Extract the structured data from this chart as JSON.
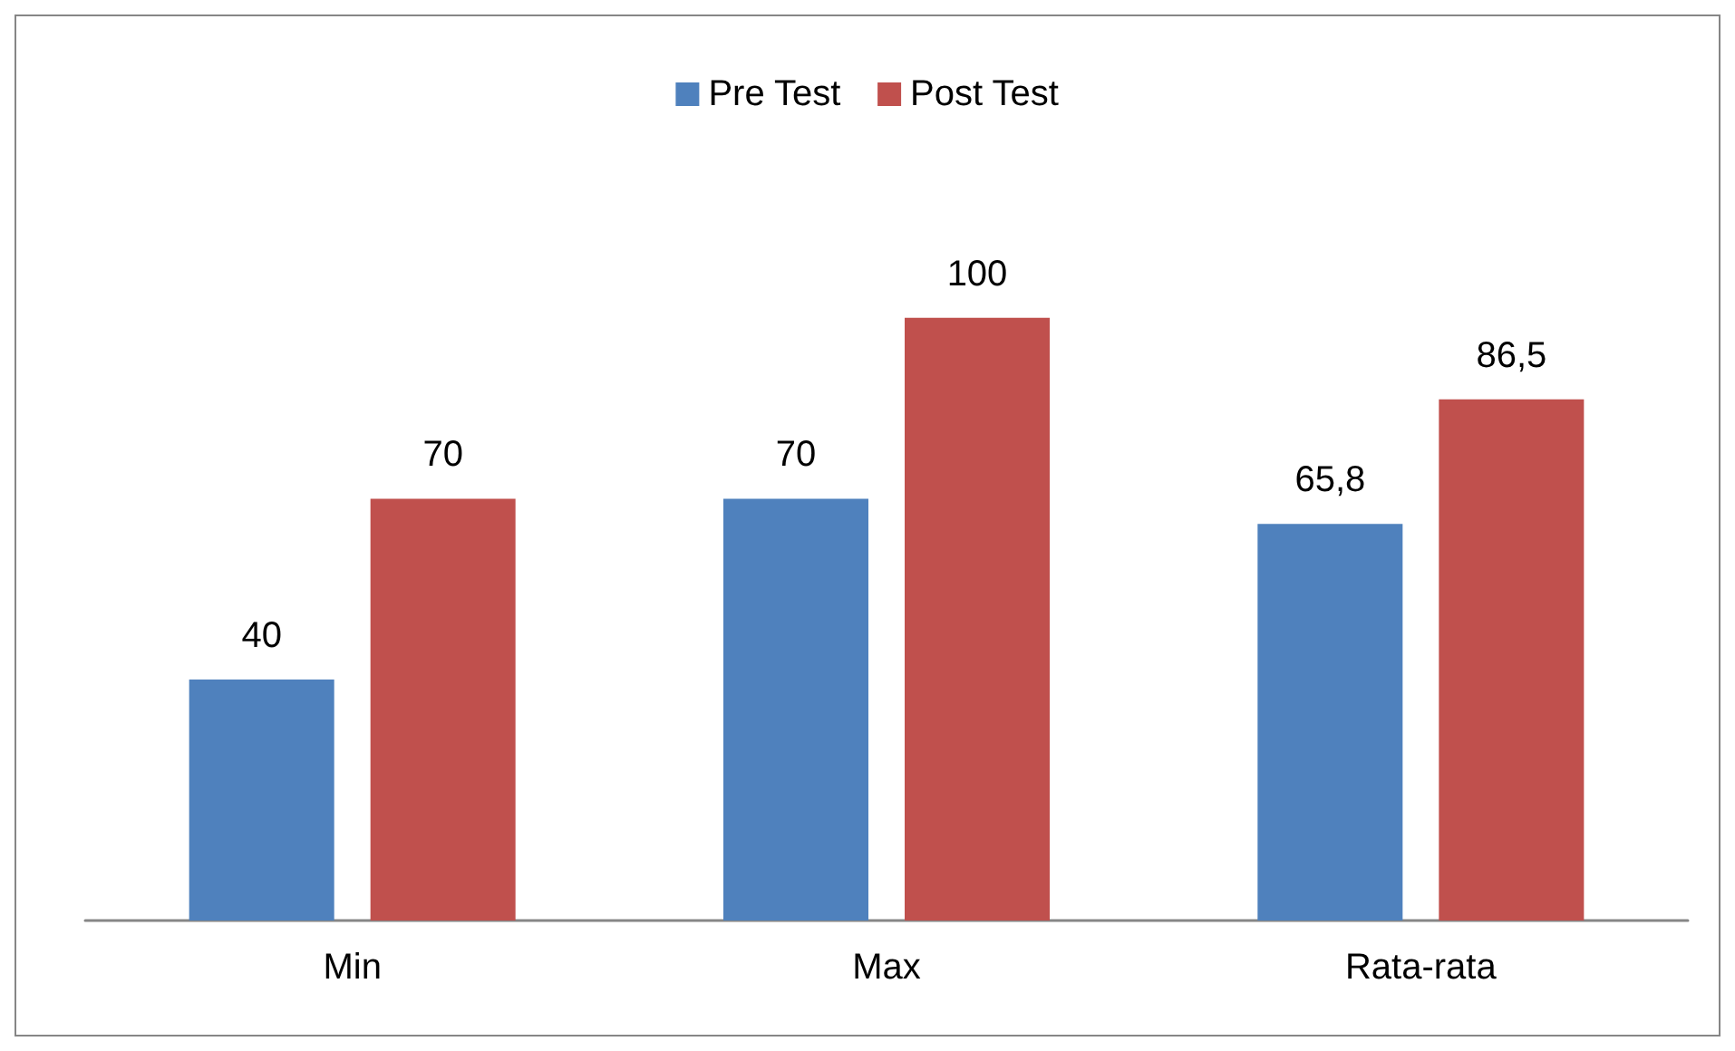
{
  "chart_data": {
    "type": "bar",
    "categories": [
      "Min",
      "Max",
      "Rata-rata"
    ],
    "series": [
      {
        "name": "Pre Test",
        "color": "#4f81bd",
        "values": [
          40,
          70,
          65.8
        ],
        "value_labels": [
          "40",
          "70",
          "65,8"
        ]
      },
      {
        "name": "Post Test",
        "color": "#c0504d",
        "values": [
          70,
          100,
          86.5
        ],
        "value_labels": [
          "70",
          "100",
          "86,5"
        ]
      }
    ],
    "legend": "top",
    "grid": false
  }
}
